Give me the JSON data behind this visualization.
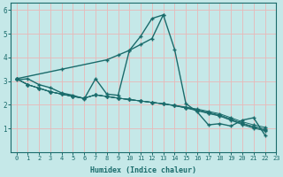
{
  "background_color": "#c5e8e8",
  "grid_color": "#e8b8b8",
  "line_color": "#1a6b6b",
  "xlabel": "Humidex (Indice chaleur)",
  "xlim": [
    -0.5,
    23
  ],
  "ylim": [
    0,
    6.3
  ],
  "xticks": [
    0,
    1,
    2,
    3,
    4,
    5,
    6,
    7,
    8,
    9,
    10,
    11,
    12,
    13,
    14,
    15,
    16,
    17,
    18,
    19,
    20,
    21,
    22,
    23
  ],
  "yticks": [
    1,
    2,
    3,
    4,
    5,
    6
  ],
  "series": {
    "peaked": {
      "x": [
        0,
        1,
        2,
        3,
        4,
        5,
        6,
        7,
        8,
        9,
        10,
        11,
        12,
        13,
        14,
        15,
        16,
        17,
        18,
        19,
        20,
        21,
        22
      ],
      "y": [
        3.05,
        3.1,
        2.85,
        2.72,
        2.5,
        2.4,
        2.25,
        3.1,
        2.45,
        2.4,
        4.3,
        4.9,
        5.65,
        5.8,
        4.35,
        2.05,
        1.7,
        1.15,
        1.2,
        1.1,
        1.35,
        1.45,
        0.72
      ]
    },
    "diagonal": {
      "x": [
        0,
        4,
        8,
        9,
        10,
        11,
        12,
        13
      ],
      "y": [
        3.1,
        3.5,
        3.9,
        4.1,
        4.3,
        4.55,
        4.8,
        5.8
      ]
    },
    "declining1": {
      "x": [
        0,
        1,
        2,
        3,
        4,
        5,
        6,
        7,
        8,
        9,
        10,
        11,
        12,
        13,
        14,
        15,
        16,
        17,
        18,
        19,
        20,
        21,
        22
      ],
      "y": [
        3.1,
        2.85,
        2.7,
        2.55,
        2.45,
        2.35,
        2.28,
        2.42,
        2.35,
        2.28,
        2.22,
        2.16,
        2.1,
        2.04,
        1.98,
        1.9,
        1.82,
        1.72,
        1.62,
        1.45,
        1.28,
        1.15,
        1.05
      ]
    },
    "declining2": {
      "x": [
        0,
        1,
        2,
        3,
        4,
        5,
        6,
        7,
        8,
        9,
        10,
        11,
        12,
        13,
        14,
        15,
        16,
        17,
        18,
        19,
        20,
        21,
        22
      ],
      "y": [
        3.1,
        2.85,
        2.7,
        2.55,
        2.45,
        2.35,
        2.28,
        2.42,
        2.35,
        2.28,
        2.22,
        2.16,
        2.1,
        2.04,
        1.97,
        1.88,
        1.79,
        1.68,
        1.57,
        1.4,
        1.22,
        1.08,
        0.98
      ]
    },
    "declining3": {
      "x": [
        0,
        1,
        2,
        3,
        4,
        5,
        6,
        7,
        8,
        9,
        10,
        11,
        12,
        13,
        14,
        15,
        16,
        17,
        18,
        19,
        20,
        21,
        22
      ],
      "y": [
        3.1,
        2.85,
        2.7,
        2.55,
        2.45,
        2.35,
        2.28,
        2.42,
        2.35,
        2.28,
        2.22,
        2.16,
        2.1,
        2.04,
        1.96,
        1.86,
        1.75,
        1.63,
        1.52,
        1.34,
        1.16,
        1.01,
        0.9
      ]
    },
    "declining4": {
      "x": [
        0,
        1,
        2,
        3,
        4,
        5,
        6,
        7,
        8,
        9,
        10,
        11,
        12,
        13,
        14,
        15,
        16,
        17,
        18,
        19,
        20,
        21,
        22
      ],
      "y": [
        3.1,
        2.85,
        2.7,
        2.55,
        2.45,
        2.35,
        2.28,
        2.42,
        2.35,
        2.28,
        2.22,
        2.16,
        2.1,
        2.04,
        1.96,
        1.88,
        1.77,
        1.65,
        1.54,
        1.36,
        1.19,
        1.05,
        0.93
      ]
    },
    "valley": {
      "x": [
        14,
        15,
        16,
        17,
        18,
        19,
        20,
        21,
        22
      ],
      "y": [
        2.1,
        1.93,
        1.72,
        1.28,
        1.22,
        1.12,
        1.35,
        1.45,
        0.72
      ]
    }
  }
}
